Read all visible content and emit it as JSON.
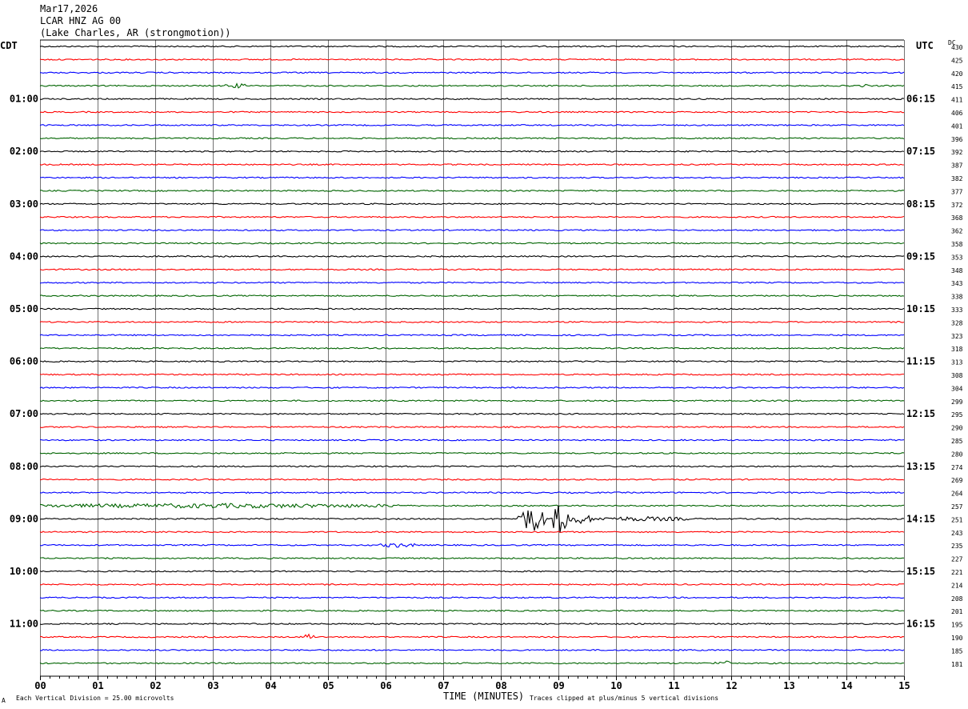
{
  "header": {
    "date": "Mar17,2026",
    "station": "LCAR HNZ AG 00",
    "location": "(Lake Charles, AR (strongmotion))"
  },
  "chart_data": {
    "type": "line",
    "title": "Mar17,2026",
    "left_timezone": "CDT",
    "right_timezone": "UTC",
    "right_column_label": "DC",
    "x_label": "TIME (MINUTES)",
    "x_ticks": [
      "00",
      "01",
      "02",
      "03",
      "04",
      "05",
      "06",
      "07",
      "08",
      "09",
      "10",
      "11",
      "12",
      "13",
      "14",
      "15"
    ],
    "xlim": [
      0,
      15
    ],
    "trace_colors": [
      "#000000",
      "#ff0000",
      "#0000ff",
      "#006400"
    ],
    "traces_per_hour": 4,
    "trace_count": 48,
    "left_hour_labels": [
      {
        "trace": 4,
        "label": "01:00"
      },
      {
        "trace": 8,
        "label": "02:00"
      },
      {
        "trace": 12,
        "label": "03:00"
      },
      {
        "trace": 16,
        "label": "04:00"
      },
      {
        "trace": 20,
        "label": "05:00"
      },
      {
        "trace": 24,
        "label": "06:00"
      },
      {
        "trace": 28,
        "label": "07:00"
      },
      {
        "trace": 32,
        "label": "08:00"
      },
      {
        "trace": 36,
        "label": "09:00"
      },
      {
        "trace": 40,
        "label": "10:00"
      },
      {
        "trace": 44,
        "label": "11:00"
      }
    ],
    "right_hour_labels": [
      {
        "trace": 4,
        "label": "06:15"
      },
      {
        "trace": 8,
        "label": "07:15"
      },
      {
        "trace": 12,
        "label": "08:15"
      },
      {
        "trace": 16,
        "label": "09:15"
      },
      {
        "trace": 20,
        "label": "10:15"
      },
      {
        "trace": 24,
        "label": "11:15"
      },
      {
        "trace": 28,
        "label": "12:15"
      },
      {
        "trace": 32,
        "label": "13:15"
      },
      {
        "trace": 36,
        "label": "14:15"
      },
      {
        "trace": 40,
        "label": "15:15"
      },
      {
        "trace": 44,
        "label": "16:15"
      }
    ],
    "dc_values": [
      "430",
      "425",
      "420",
      "415",
      "411",
      "406",
      "401",
      "396",
      "392",
      "387",
      "382",
      "377",
      "372",
      "368",
      "362",
      "358",
      "353",
      "348",
      "343",
      "338",
      "333",
      "328",
      "323",
      "318",
      "313",
      "308",
      "304",
      "299",
      "295",
      "290",
      "285",
      "280",
      "274",
      "269",
      "264",
      "257",
      "251",
      "243",
      "235",
      "227",
      "221",
      "214",
      "208",
      "201",
      "195",
      "190",
      "185",
      "181"
    ],
    "events": [
      {
        "trace": 3,
        "start_min": 3.2,
        "end_min": 3.6,
        "amp": 3
      },
      {
        "trace": 3,
        "start_min": 14.2,
        "end_min": 14.4,
        "amp": 2
      },
      {
        "trace": 35,
        "start_min": 0.0,
        "end_min": 6.3,
        "amp": 3
      },
      {
        "trace": 36,
        "start_min": 8.3,
        "end_min": 8.8,
        "amp": 16
      },
      {
        "trace": 36,
        "start_min": 8.9,
        "end_min": 9.2,
        "amp": 22
      },
      {
        "trace": 36,
        "start_min": 9.2,
        "end_min": 9.6,
        "amp": 6
      },
      {
        "trace": 36,
        "start_min": 9.6,
        "end_min": 11.3,
        "amp": 3
      },
      {
        "trace": 38,
        "start_min": 5.9,
        "end_min": 6.5,
        "amp": 3
      },
      {
        "trace": 45,
        "start_min": 4.6,
        "end_min": 4.75,
        "amp": 5
      },
      {
        "trace": 47,
        "start_min": 11.7,
        "end_min": 12.1,
        "amp": 3
      }
    ]
  },
  "footer": {
    "scale_note": "Each Vertical Division =   25.00 microvolts",
    "clip_note": "Traces clipped at plus/minus 5 vertical divisions",
    "corner_mark": "A"
  }
}
